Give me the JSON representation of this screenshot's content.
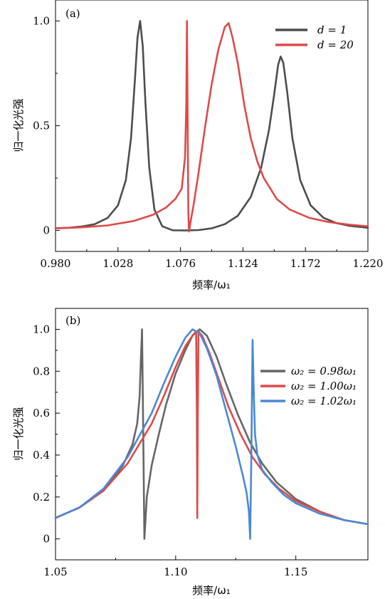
{
  "chart_data": [
    {
      "type": "line",
      "panel_label": "(a)",
      "xlabel": "频率/ω₁",
      "ylabel": "归一化光强",
      "xlim": [
        0.98,
        1.22
      ],
      "ylim": [
        -0.1,
        1.1
      ],
      "xticks": [
        0.98,
        1.028,
        1.076,
        1.124,
        1.172,
        1.22
      ],
      "xtick_labels": [
        "0.980",
        "1.028",
        "1.076",
        "1.124",
        "1.172",
        "1.220"
      ],
      "yticks": [
        0,
        0.5,
        1.0
      ],
      "ytick_labels": [
        "0",
        "0.5",
        "1.0"
      ],
      "legend_position": "top-right",
      "grid": false,
      "series": [
        {
          "name": "d = 1",
          "color": "#4d4d4d",
          "x": [
            0.98,
            0.99,
            1.0,
            1.01,
            1.02,
            1.028,
            1.034,
            1.038,
            1.041,
            1.043,
            1.045,
            1.047,
            1.049,
            1.052,
            1.056,
            1.062,
            1.07,
            1.08,
            1.09,
            1.1,
            1.11,
            1.12,
            1.13,
            1.138,
            1.144,
            1.148,
            1.151,
            1.153,
            1.155,
            1.158,
            1.162,
            1.168,
            1.176,
            1.186,
            1.196,
            1.206,
            1.22
          ],
          "y": [
            0.01,
            0.013,
            0.019,
            0.03,
            0.06,
            0.12,
            0.24,
            0.44,
            0.72,
            0.92,
            1.0,
            0.88,
            0.62,
            0.3,
            0.1,
            0.02,
            0.001,
            0.0,
            0.002,
            0.01,
            0.03,
            0.07,
            0.16,
            0.3,
            0.48,
            0.65,
            0.79,
            0.83,
            0.8,
            0.66,
            0.44,
            0.24,
            0.12,
            0.06,
            0.035,
            0.022,
            0.013
          ]
        },
        {
          "name": "d = 20",
          "color": "#de4a4a",
          "x": [
            0.98,
            1.0,
            1.02,
            1.04,
            1.055,
            1.065,
            1.072,
            1.077,
            1.0795,
            1.0805,
            1.081,
            1.0815,
            1.082,
            1.0825,
            1.083,
            1.084,
            1.086,
            1.09,
            1.095,
            1.1,
            1.105,
            1.11,
            1.113,
            1.116,
            1.12,
            1.125,
            1.13,
            1.135,
            1.14,
            1.15,
            1.16,
            1.175,
            1.19,
            1.205,
            1.22
          ],
          "y": [
            0.01,
            0.015,
            0.024,
            0.045,
            0.075,
            0.11,
            0.15,
            0.2,
            0.35,
            0.6,
            1.0,
            0.5,
            0.1,
            -0.005,
            0.01,
            0.05,
            0.12,
            0.28,
            0.5,
            0.7,
            0.86,
            0.97,
            0.99,
            0.92,
            0.8,
            0.6,
            0.44,
            0.33,
            0.25,
            0.15,
            0.1,
            0.06,
            0.04,
            0.028,
            0.02
          ]
        }
      ]
    },
    {
      "type": "line",
      "panel_label": "(b)",
      "xlabel": "频率/ω₁",
      "ylabel": "归一化光强",
      "xlim": [
        1.05,
        1.18
      ],
      "ylim": [
        -0.1,
        1.1
      ],
      "xticks": [
        1.05,
        1.1,
        1.15
      ],
      "xtick_labels": [
        "1.05",
        "1.10",
        "1.15"
      ],
      "yticks": [
        0,
        0.2,
        0.4,
        0.6,
        0.8,
        1.0
      ],
      "ytick_labels": [
        "0",
        "0.2",
        "0.4",
        "0.6",
        "0.8",
        "1.0"
      ],
      "legend_position": "right",
      "grid": false,
      "series": [
        {
          "name": "ω₂ = 0.98ω₁",
          "color": "#666666",
          "x": [
            1.05,
            1.06,
            1.07,
            1.078,
            1.082,
            1.084,
            1.085,
            1.0855,
            1.086,
            1.0865,
            1.087,
            1.0875,
            1.088,
            1.09,
            1.093,
            1.096,
            1.1,
            1.104,
            1.107,
            1.11,
            1.113,
            1.117,
            1.121,
            1.126,
            1.131,
            1.136,
            1.142,
            1.15,
            1.16,
            1.17,
            1.18
          ],
          "y": [
            0.1,
            0.15,
            0.23,
            0.35,
            0.45,
            0.55,
            0.68,
            0.85,
            1.0,
            0.5,
            0.0,
            0.1,
            0.2,
            0.35,
            0.5,
            0.64,
            0.79,
            0.9,
            0.97,
            1.0,
            0.97,
            0.87,
            0.74,
            0.59,
            0.46,
            0.36,
            0.27,
            0.19,
            0.13,
            0.09,
            0.07
          ]
        },
        {
          "name": "ω₂ = 1.00ω₁",
          "color": "#de4a4a",
          "x": [
            1.05,
            1.06,
            1.07,
            1.08,
            1.09,
            1.095,
            1.1,
            1.104,
            1.107,
            1.1085,
            1.1088,
            1.109,
            1.1092,
            1.1095,
            1.111,
            1.114,
            1.118,
            1.122,
            1.127,
            1.132,
            1.137,
            1.143,
            1.15,
            1.16,
            1.17,
            1.18
          ],
          "y": [
            0.1,
            0.15,
            0.23,
            0.36,
            0.55,
            0.68,
            0.82,
            0.92,
            0.97,
            0.99,
            0.6,
            0.1,
            0.6,
            0.99,
            0.97,
            0.89,
            0.76,
            0.63,
            0.5,
            0.39,
            0.31,
            0.24,
            0.18,
            0.13,
            0.09,
            0.07
          ]
        },
        {
          "name": "ω₂ = 1.02ω₁",
          "color": "#4a8ad4",
          "x": [
            1.05,
            1.06,
            1.07,
            1.08,
            1.09,
            1.095,
            1.1,
            1.104,
            1.107,
            1.11,
            1.113,
            1.117,
            1.121,
            1.125,
            1.128,
            1.1295,
            1.1305,
            1.131,
            1.1315,
            1.132,
            1.1325,
            1.133,
            1.134,
            1.136,
            1.14,
            1.145,
            1.15,
            1.16,
            1.17,
            1.18
          ],
          "y": [
            0.1,
            0.15,
            0.24,
            0.39,
            0.6,
            0.74,
            0.87,
            0.96,
            1.0,
            0.98,
            0.91,
            0.78,
            0.61,
            0.44,
            0.3,
            0.22,
            0.13,
            0.0,
            0.4,
            0.95,
            0.7,
            0.5,
            0.4,
            0.33,
            0.27,
            0.21,
            0.17,
            0.12,
            0.09,
            0.07
          ]
        }
      ]
    }
  ]
}
